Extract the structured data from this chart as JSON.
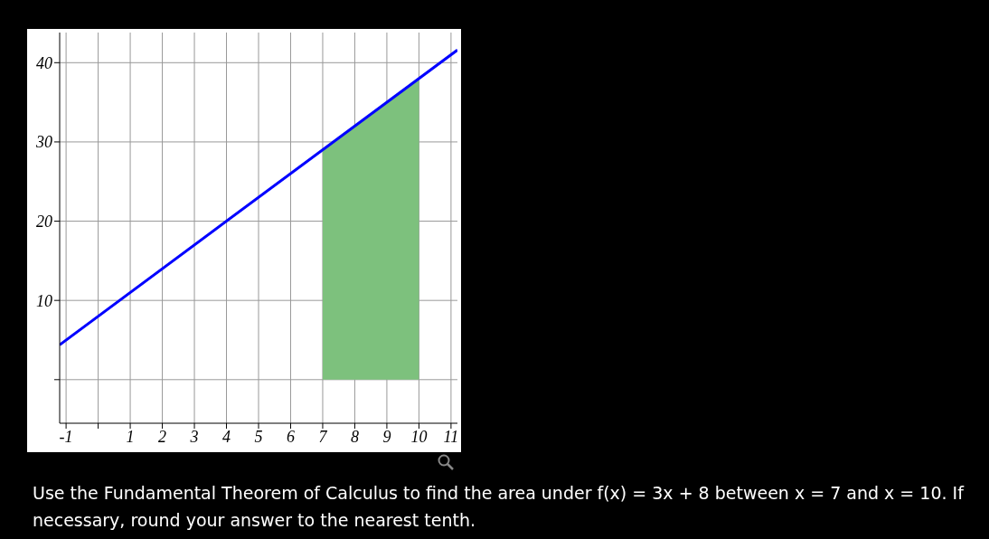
{
  "chart_data": {
    "type": "line",
    "series": [
      {
        "color": "#0000ff",
        "x": [
          -1.2,
          11.2
        ],
        "values": [
          4.4,
          41.6
        ]
      },
      {
        "type": "area",
        "color": "#7dc17d",
        "x": [
          7,
          10
        ],
        "values": [
          29,
          38
        ]
      }
    ],
    "xlim": [
      -1.2,
      11.2
    ],
    "ylim": [
      -5.5,
      43.8
    ],
    "xticks": [
      -1,
      {
        "value": 0,
        "label": null
      },
      1,
      2,
      3,
      4,
      5,
      6,
      7,
      8,
      9,
      10,
      11
    ],
    "yticks": [
      {
        "value": 0,
        "label": null
      },
      10,
      20,
      30,
      40
    ],
    "grid": true,
    "annotations": [
      "Use the Fundamental Theorem of Calculus to find the area under f(x) = 3x + 8 between x = 7 and x = 10. If necessary, round your answer to the nearest tenth."
    ]
  }
}
